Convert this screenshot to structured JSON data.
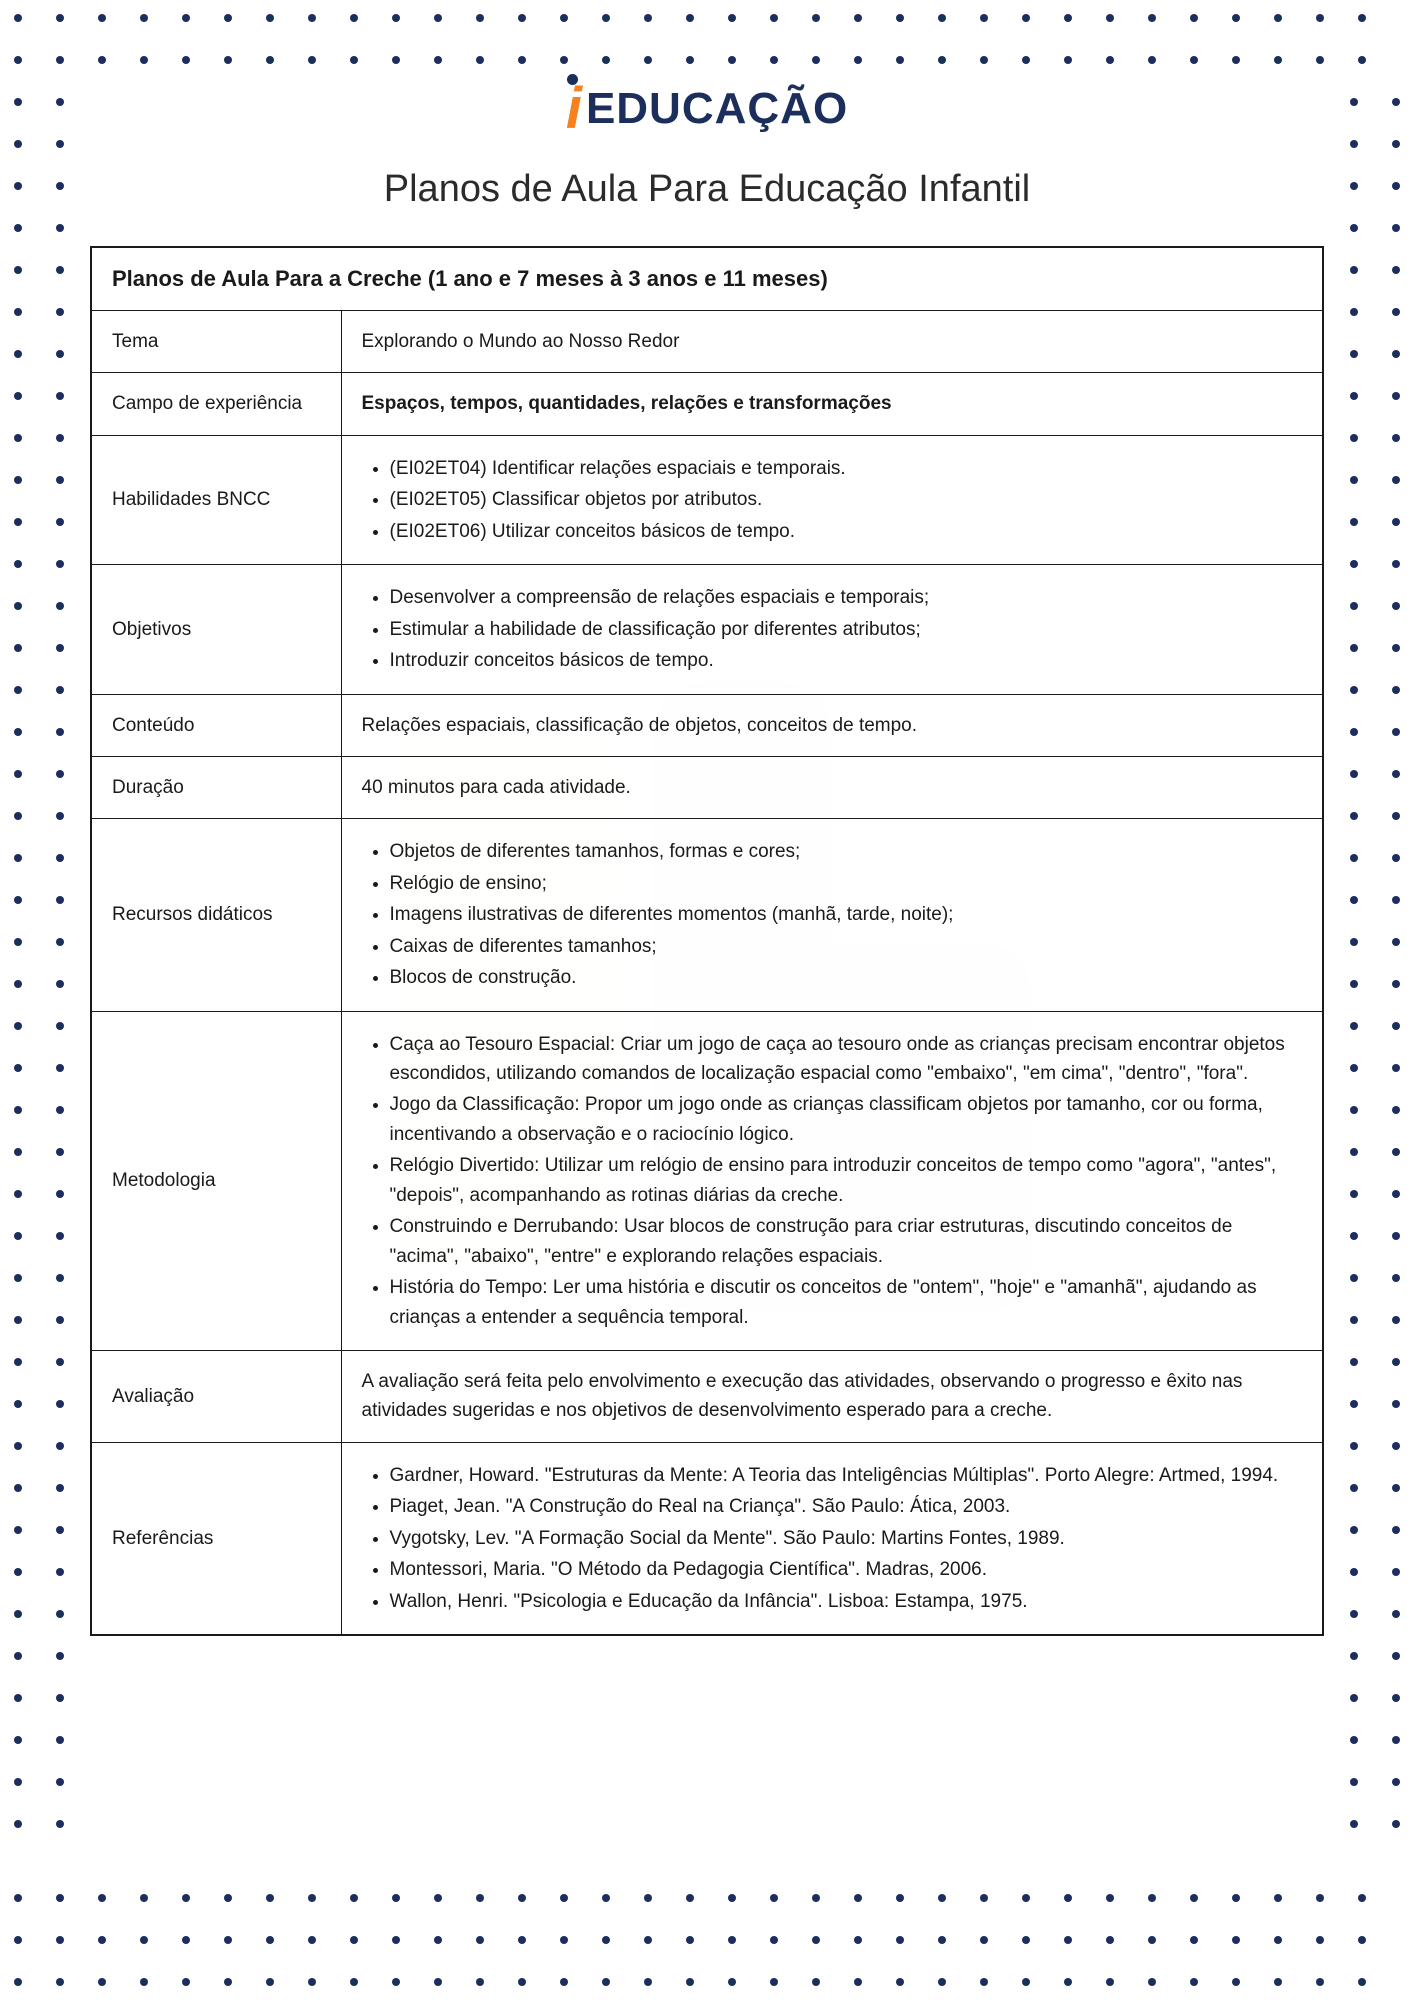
{
  "logo": {
    "accent_text": "i",
    "main_text": "EDUCAÇÃO",
    "accent_color": "#f5821f",
    "main_color": "#1c2e5c"
  },
  "title": "Planos de Aula Para Educação Infantil",
  "table": {
    "header": "Planos de Aula Para a Creche (1 ano e 7 meses à 3 anos e 11 meses)",
    "rows": {
      "tema": {
        "label": "Tema",
        "value": "Explorando o Mundo ao Nosso Redor"
      },
      "campo": {
        "label": "Campo de experiência",
        "value": "Espaços, tempos, quantidades, relações e transformações"
      },
      "habilidades": {
        "label": "Habilidades BNCC",
        "items": [
          "(EI02ET04) Identificar relações espaciais e temporais.",
          "(EI02ET05) Classificar objetos por atributos.",
          "(EI02ET06) Utilizar conceitos básicos de tempo."
        ]
      },
      "objetivos": {
        "label": "Objetivos",
        "items": [
          "Desenvolver a compreensão de relações espaciais e temporais;",
          "Estimular a habilidade de classificação por diferentes atributos;",
          "Introduzir conceitos básicos de tempo."
        ]
      },
      "conteudo": {
        "label": "Conteúdo",
        "value": "Relações espaciais, classificação de objetos, conceitos de tempo."
      },
      "duracao": {
        "label": "Duração",
        "value": "40 minutos para cada atividade."
      },
      "recursos": {
        "label": "Recursos didáticos",
        "items": [
          "Objetos de diferentes tamanhos, formas e cores;",
          "Relógio de ensino;",
          "Imagens ilustrativas de diferentes momentos (manhã, tarde, noite);",
          "Caixas de diferentes tamanhos;",
          "Blocos de construção."
        ]
      },
      "metodologia": {
        "label": "Metodologia",
        "items": [
          "Caça ao Tesouro Espacial: Criar um jogo de caça ao tesouro onde as crianças precisam encontrar objetos escondidos, utilizando comandos de localização espacial como \"embaixo\", \"em cima\", \"dentro\", \"fora\".",
          "Jogo da Classificação: Propor um jogo onde as crianças classificam objetos por tamanho, cor ou forma, incentivando a observação e o raciocínio lógico.",
          "Relógio Divertido: Utilizar um relógio de ensino para introduzir conceitos de tempo como \"agora\", \"antes\", \"depois\", acompanhando as rotinas diárias da creche.",
          "Construindo e Derrubando: Usar blocos de construção para criar estruturas, discutindo conceitos de \"acima\", \"abaixo\", \"entre\" e explorando relações espaciais.",
          "História do Tempo: Ler uma história e discutir os conceitos de \"ontem\", \"hoje\" e \"amanhã\", ajudando as crianças a entender a sequência temporal."
        ]
      },
      "avaliacao": {
        "label": "Avaliação",
        "value": "A avaliação será feita pelo envolvimento e execução das atividades, observando o progresso e êxito nas atividades sugeridas e nos objetivos de desenvolvimento esperado para a creche."
      },
      "referencias": {
        "label": "Referências",
        "items": [
          "Gardner, Howard. \"Estruturas da Mente: A Teoria das Inteligências Múltiplas\". Porto Alegre: Artmed, 1994.",
          "Piaget, Jean. \"A Construção do Real na Criança\". São Paulo: Ática, 2003.",
          "Vygotsky, Lev. \"A Formação Social da Mente\". São Paulo: Martins Fontes, 1989.",
          "Montessori, Maria. \"O Método da Pedagogia Científica\". Madras, 2006.",
          "Wallon, Henri. \"Psicologia e Educação da Infância\". Lisboa: Estampa, 1975."
        ]
      }
    }
  },
  "dots": {
    "color": "#1c2e5c",
    "spacing": 42,
    "top_rows": 2,
    "side_cols": 2,
    "bottom_rows": 3,
    "margin": 18
  }
}
